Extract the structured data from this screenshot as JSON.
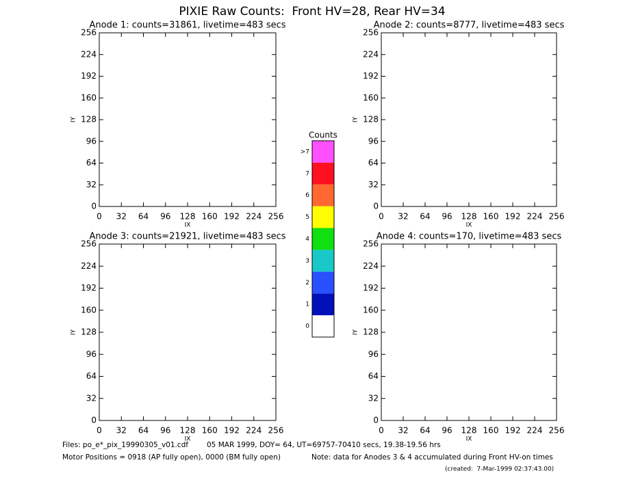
{
  "title": "PIXIE Raw Counts:  Front HV=28, Rear HV=34",
  "footer": {
    "files": "Files: po_e*_pix_19990305_v01.cdf",
    "date": "05 MAR 1999, DOY= 64, UT=69757-70410 secs, 19.38-19.56 hrs",
    "motor": "Motor Positions = 0918 (AP fully open), 0000 (BM fully open)",
    "note": "Note: data for Anodes 3 & 4 accumulated during Front HV-on times",
    "created": "(created:  7-Mar-1999 02:37:43.00)"
  },
  "chart_data": [
    {
      "type": "heatmap",
      "title": "Anode 1: counts=31861, livetime=483 secs",
      "xlabel": "IX",
      "ylabel": "IY",
      "xlim": [
        0,
        256
      ],
      "ylim": [
        0,
        256
      ],
      "xticks": [
        0,
        32,
        64,
        96,
        128,
        160,
        192,
        224,
        256
      ],
      "yticks": [
        0,
        32,
        64,
        96,
        128,
        160,
        192,
        224,
        256
      ]
    },
    {
      "type": "heatmap",
      "title": "Anode 2: counts=8777, livetime=483 secs",
      "xlabel": "IX",
      "ylabel": "IY",
      "xlim": [
        0,
        256
      ],
      "ylim": [
        0,
        256
      ],
      "xticks": [
        0,
        32,
        64,
        96,
        128,
        160,
        192,
        224,
        256
      ],
      "yticks": [
        0,
        32,
        64,
        96,
        128,
        160,
        192,
        224,
        256
      ]
    },
    {
      "type": "heatmap",
      "title": "Anode 3: counts=21921, livetime=483 secs",
      "xlabel": "IX",
      "ylabel": "IY",
      "xlim": [
        0,
        256
      ],
      "ylim": [
        0,
        256
      ],
      "xticks": [
        0,
        32,
        64,
        96,
        128,
        160,
        192,
        224,
        256
      ],
      "yticks": [
        0,
        32,
        64,
        96,
        128,
        160,
        192,
        224,
        256
      ]
    },
    {
      "type": "heatmap",
      "title": "Anode 4: counts=170, livetime=483 secs",
      "xlabel": "IX",
      "ylabel": "IY",
      "xlim": [
        0,
        256
      ],
      "ylim": [
        0,
        256
      ],
      "xticks": [
        0,
        32,
        64,
        96,
        128,
        160,
        192,
        224,
        256
      ],
      "yticks": [
        0,
        32,
        64,
        96,
        128,
        160,
        192,
        224,
        256
      ]
    },
    {
      "type": "colorbar",
      "title": "Counts",
      "categories": [
        "0",
        "1",
        "2",
        "3",
        "4",
        "5",
        "6",
        "7",
        ">7"
      ],
      "colors": [
        "#ffffff",
        "#0010b8",
        "#2850ff",
        "#18c8c8",
        "#10e010",
        "#ffff00",
        "#ff6830",
        "#ff1020",
        "#ff50ff"
      ]
    }
  ]
}
